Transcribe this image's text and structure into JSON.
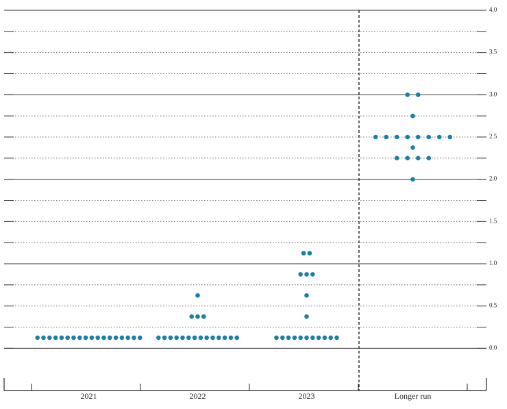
{
  "chart_data": {
    "type": "dot",
    "categories": [
      "2021",
      "2022",
      "2023",
      "Longer run"
    ],
    "dots": [
      [
        {
          "value": 0.125,
          "count": 18
        }
      ],
      [
        {
          "value": 0.125,
          "count": 14
        },
        {
          "value": 0.375,
          "count": 3
        },
        {
          "value": 0.625,
          "count": 1
        }
      ],
      [
        {
          "value": 0.125,
          "count": 11
        },
        {
          "value": 0.375,
          "count": 1
        },
        {
          "value": 0.625,
          "count": 1
        },
        {
          "value": 0.875,
          "count": 3
        },
        {
          "value": 1.125,
          "count": 2
        }
      ],
      [
        {
          "value": 2.0,
          "count": 1
        },
        {
          "value": 2.25,
          "count": 4
        },
        {
          "value": 2.375,
          "count": 1
        },
        {
          "value": 2.5,
          "count": 8
        },
        {
          "value": 2.75,
          "count": 1
        },
        {
          "value": 3.0,
          "count": 2
        }
      ]
    ],
    "color": "#1a7fa6",
    "ylim": [
      -0.5,
      4.0
    ],
    "yticks": [
      {
        "value": 0,
        "label": "0.0"
      },
      0.5,
      {
        "value": 1,
        "label": "1.0"
      },
      1.5,
      {
        "value": 2,
        "label": "2.0"
      },
      2.5,
      {
        "value": 3,
        "label": "3.0"
      },
      3.5,
      {
        "value": 4,
        "label": "4.0"
      }
    ],
    "grid": true
  }
}
